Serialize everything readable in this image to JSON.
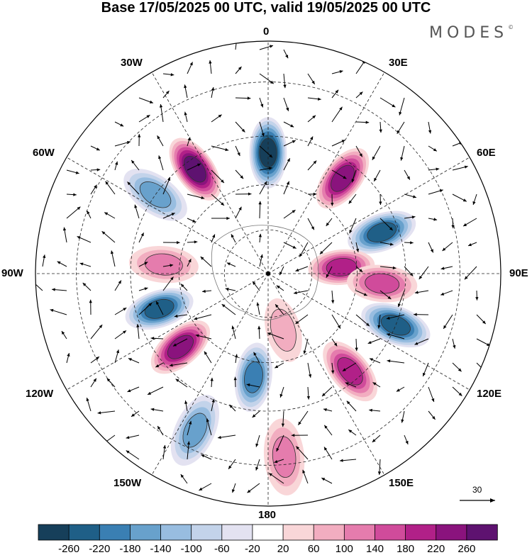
{
  "title": "Base 17/05/2025 00 UTC, valid 19/05/2025 00 UTC",
  "brand": {
    "name": "MODES",
    "mark": "©"
  },
  "longitude_labels": [
    "0",
    "30E",
    "60E",
    "90E",
    "120E",
    "150E",
    "180",
    "150W",
    "120W",
    "90W",
    "60W",
    "30W"
  ],
  "reference_vector": {
    "label": "30"
  },
  "colorbar": {
    "tick_labels": [
      "-260",
      "-220",
      "-180",
      "-140",
      "-100",
      "-60",
      "-20",
      "20",
      "60",
      "100",
      "140",
      "180",
      "220",
      "260"
    ],
    "colors": [
      "#163f5a",
      "#1f5f87",
      "#3a7fb3",
      "#68a1cc",
      "#98bde0",
      "#c3d3ea",
      "#e3e2f1",
      "#ffffff",
      "#f9d6d8",
      "#f2adc0",
      "#e57cad",
      "#d04b9b",
      "#b12088",
      "#8a137d",
      "#5e1270"
    ]
  },
  "map": {
    "projection": "south-polar-stereographic",
    "anomaly_centers": [
      {
        "lon": -35,
        "lat": -48,
        "value": 260
      },
      {
        "lon": 0,
        "lat": -50,
        "value": -260
      },
      {
        "lon": 38,
        "lat": -50,
        "value": 250
      },
      {
        "lon": 70,
        "lat": -50,
        "value": -220
      },
      {
        "lon": 85,
        "lat": -65,
        "value": 180
      },
      {
        "lon": 95,
        "lat": -52,
        "value": 160
      },
      {
        "lon": 112,
        "lat": -45,
        "value": -240
      },
      {
        "lon": 140,
        "lat": -48,
        "value": 200
      },
      {
        "lon": -172,
        "lat": -55,
        "value": -180
      },
      {
        "lon": -155,
        "lat": -35,
        "value": -140
      },
      {
        "lon": 175,
        "lat": -32,
        "value": 120
      },
      {
        "lon": -130,
        "lat": -52,
        "value": 240
      },
      {
        "lon": -108,
        "lat": -52,
        "value": -220
      },
      {
        "lon": -85,
        "lat": -55,
        "value": 120
      },
      {
        "lon": -55,
        "lat": -45,
        "value": -150
      },
      {
        "lon": 165,
        "lat": -70,
        "value": 80
      }
    ]
  }
}
